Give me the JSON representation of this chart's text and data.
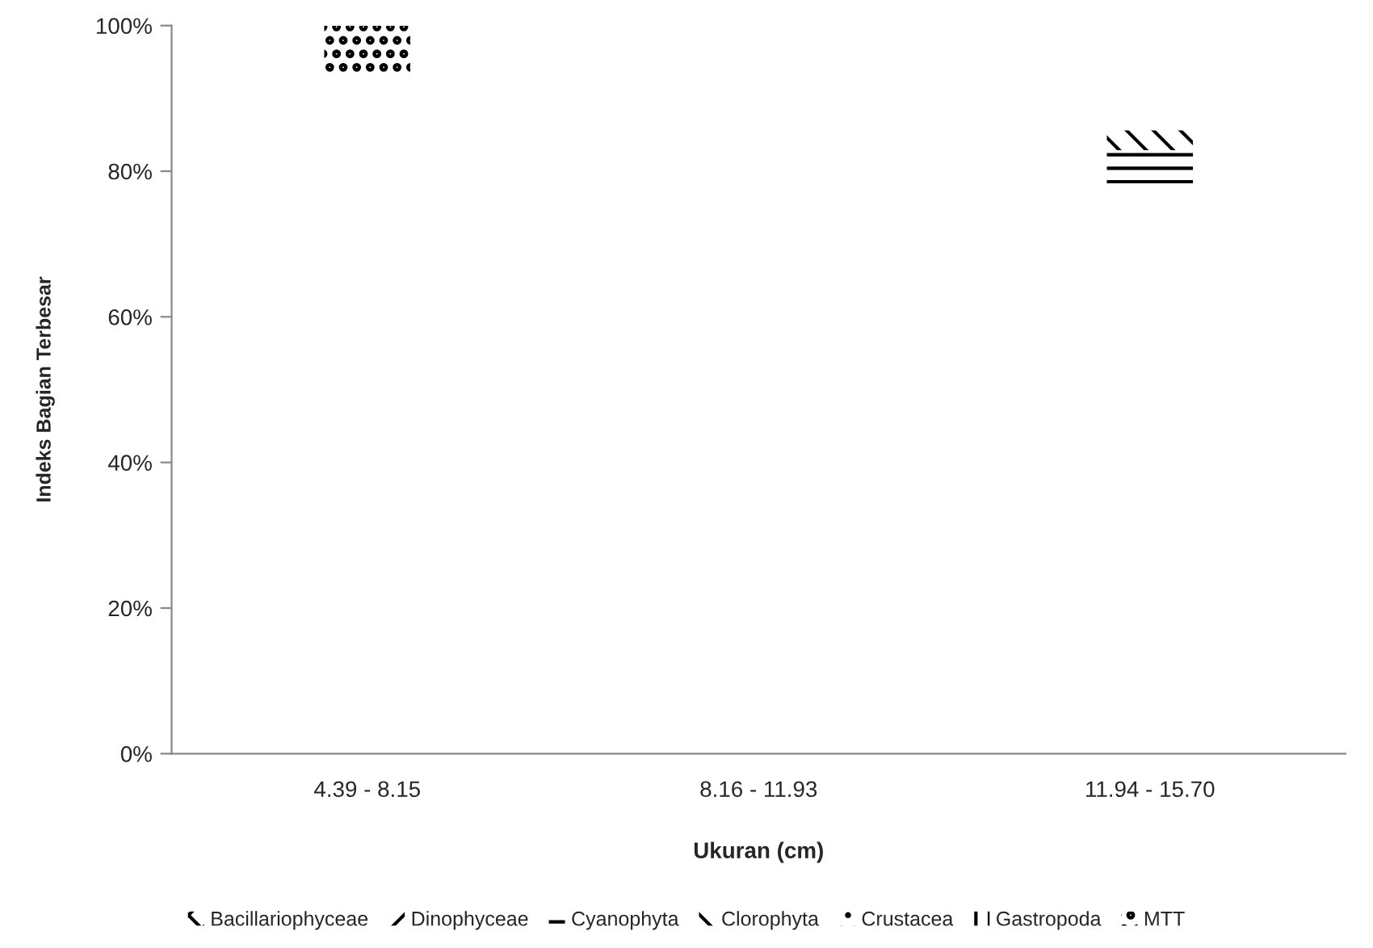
{
  "chart_data": {
    "type": "bar",
    "xlabel": "Ukuran (cm)",
    "ylabel": "Indeks Bagian Terbesar",
    "categories": [
      "4.39 - 8.15",
      "8.16 - 11.93",
      "11.94 - 15.70"
    ],
    "series": [
      {
        "name": "Bacillariophyceae",
        "color": "#000000",
        "values": [
          null,
          null,
          null
        ]
      },
      {
        "name": "Dinophyceae",
        "color": "#000000",
        "values": [
          null,
          null,
          null
        ]
      },
      {
        "name": "Cyanophyta",
        "color": "#000000",
        "values": [
          null,
          null,
          5.7
        ],
        "base": [
          null,
          null,
          77.2
        ]
      },
      {
        "name": "Clorophyta",
        "color": "#000000",
        "values": [
          null,
          null,
          2.7
        ],
        "base": [
          null,
          null,
          82.9
        ]
      },
      {
        "name": "Crustacea",
        "color": "#000000",
        "values": [
          null,
          null,
          null
        ]
      },
      {
        "name": "Gastropoda",
        "color": "#000000",
        "values": [
          null,
          null,
          null
        ]
      },
      {
        "name": "MTT",
        "color": "#000000",
        "values": [
          6.4,
          null,
          null
        ],
        "base": [
          93.6,
          null,
          null
        ]
      }
    ],
    "ylim": [
      0,
      100
    ],
    "yticks": [
      {
        "value": 0,
        "label": "0%"
      },
      {
        "value": 20,
        "label": "20%"
      },
      {
        "value": 40,
        "label": "40%"
      },
      {
        "value": 60,
        "label": "60%"
      },
      {
        "value": 80,
        "label": "80%"
      },
      {
        "value": 100,
        "label": "100%"
      }
    ],
    "legend": "bottom"
  }
}
